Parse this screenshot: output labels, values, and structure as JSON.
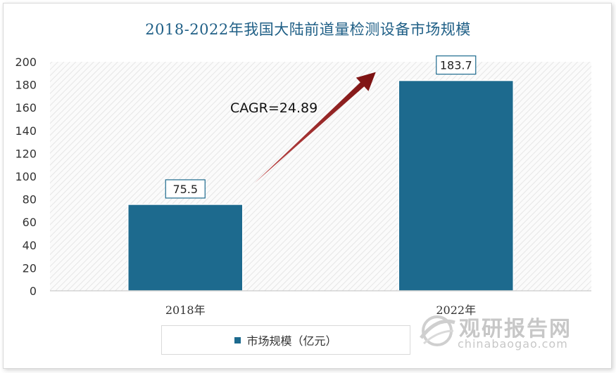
{
  "chart_data": {
    "type": "bar",
    "title": "2018-2022年我国大陆前道量检测设备市场规模",
    "categories": [
      "2018年",
      "2022年"
    ],
    "series": [
      {
        "name": "市场规模（亿元）",
        "values": [
          75.5,
          183.7
        ]
      }
    ],
    "data_labels": [
      "75.5",
      "183.7"
    ],
    "ylim": [
      0,
      200
    ],
    "yticks": [
      0,
      20,
      40,
      60,
      80,
      100,
      120,
      140,
      160,
      180,
      200
    ],
    "annotation": "CAGR=24.89",
    "bar_color": "#1d6a8e",
    "arrow_color": "#8b1a1a",
    "grid": false,
    "legend_position": "bottom"
  },
  "watermark": {
    "cn": "观研报告网",
    "en": "chinabaogao.com",
    "icon": "globe-swoosh-icon"
  }
}
